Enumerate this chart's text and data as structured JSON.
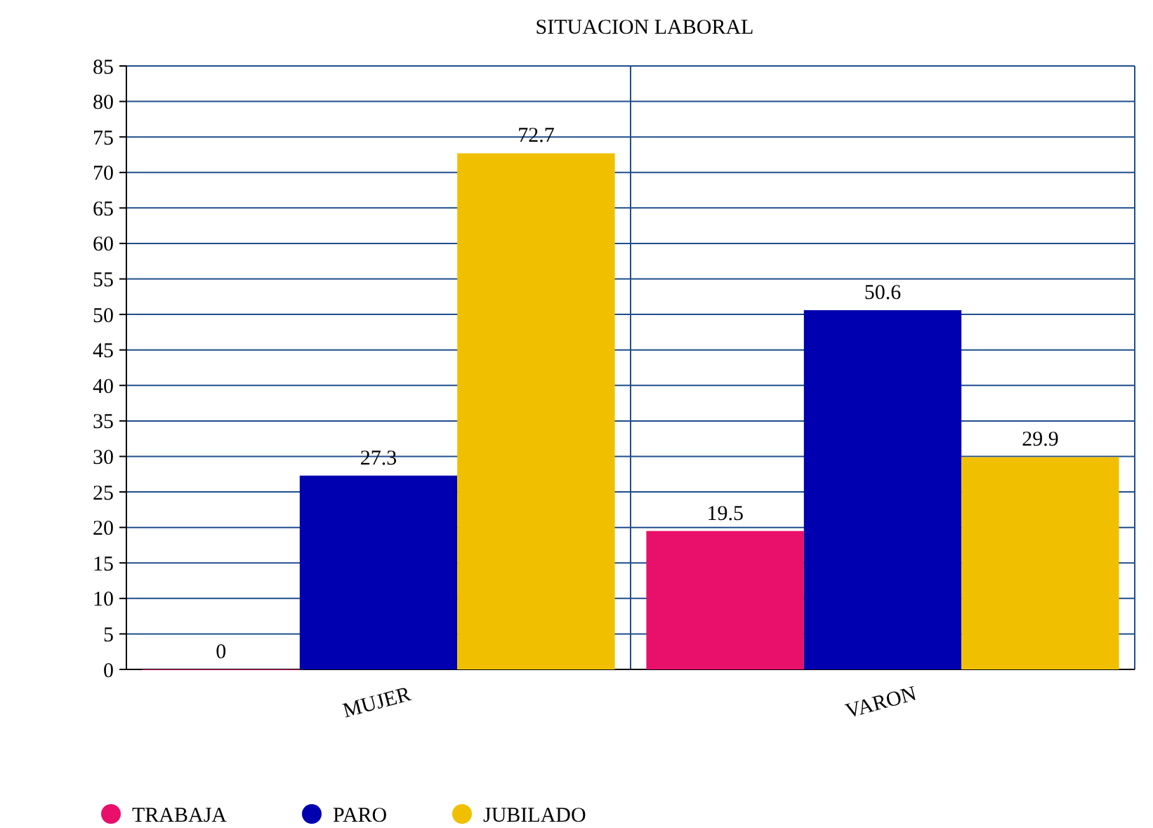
{
  "chart_data": {
    "type": "bar",
    "title": "SITUACION LABORAL",
    "categories": [
      "MUJER",
      "VARON"
    ],
    "series": [
      {
        "name": "TRABAJA",
        "color": "#e8106a",
        "values": [
          0,
          19.5
        ]
      },
      {
        "name": "PARO",
        "color": "#0000b0",
        "values": [
          27.3,
          50.6
        ]
      },
      {
        "name": "JUBILADO",
        "color": "#f0c000",
        "values": [
          72.7,
          29.9
        ]
      }
    ],
    "ylim": [
      0,
      85
    ],
    "yticks": [
      0,
      5,
      10,
      15,
      20,
      25,
      30,
      35,
      40,
      45,
      50,
      55,
      60,
      65,
      70,
      75,
      80,
      85
    ],
    "grid": true,
    "data_labels": true,
    "legend": "bottom left"
  }
}
